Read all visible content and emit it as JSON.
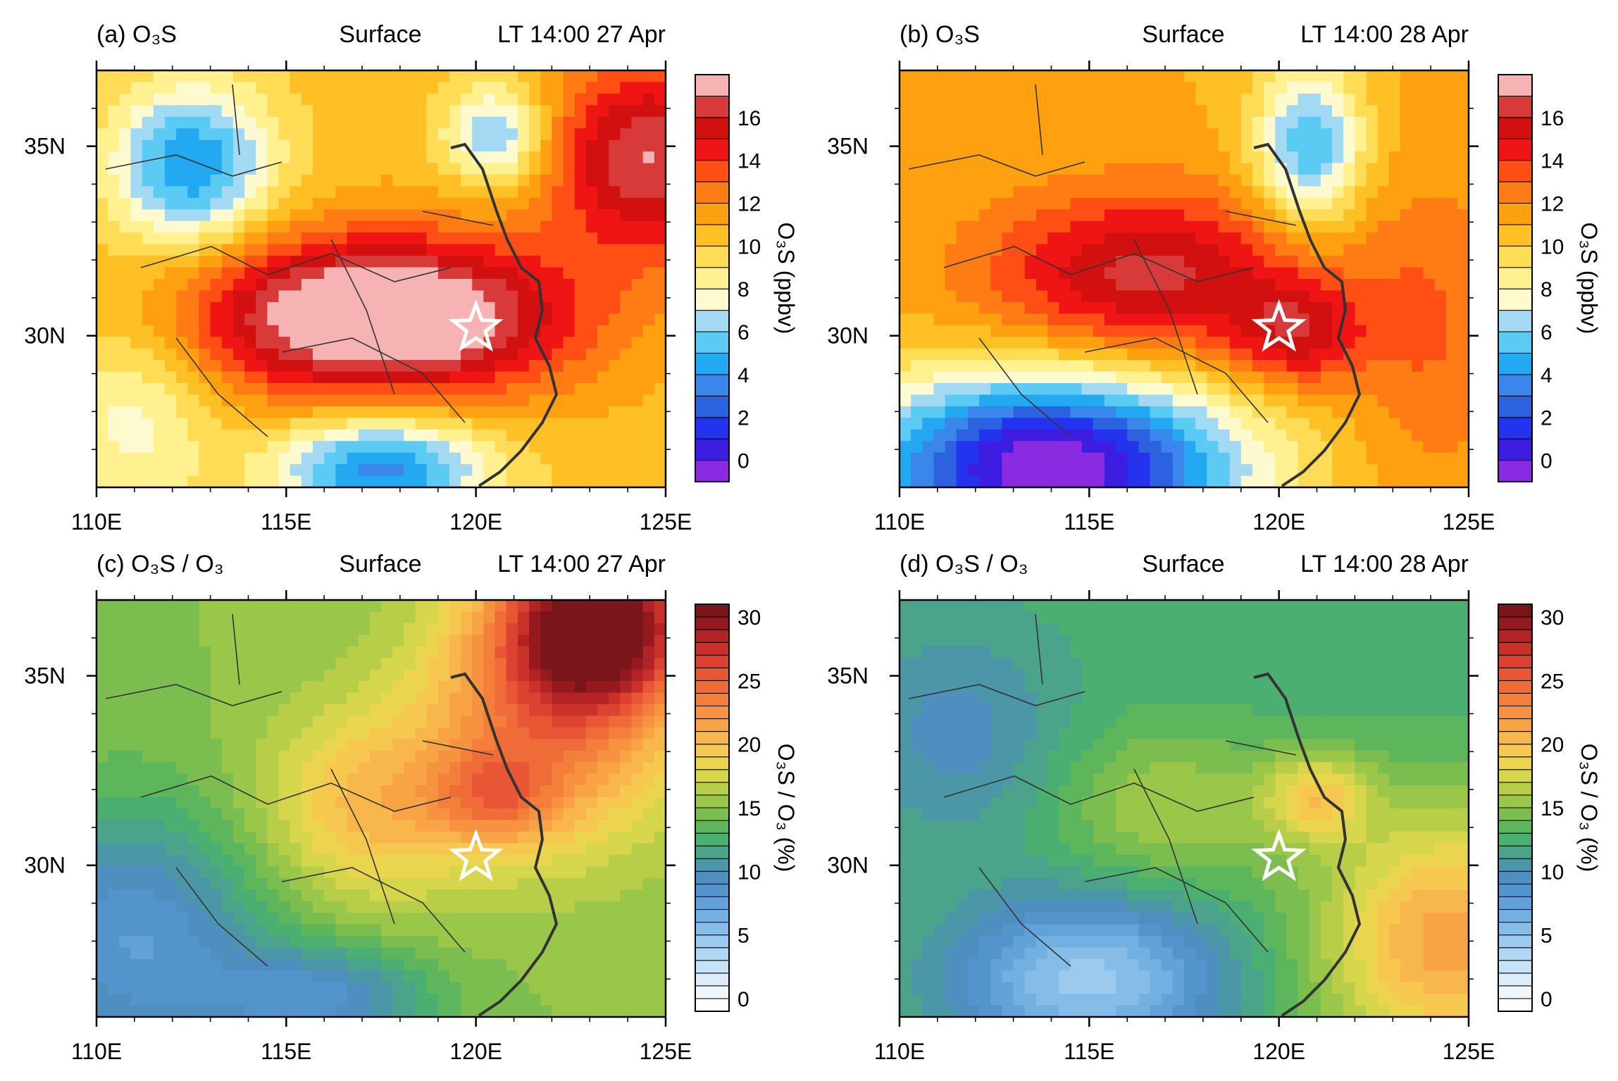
{
  "chart_data": [
    {
      "type": "heatmap",
      "panel": "a",
      "title_left": "(a) O₃S",
      "title_center": "Surface",
      "title_right": "LT 14:00 27 Apr",
      "colorbar_label": "O₃S (ppbv)",
      "colorbar_ticks": [
        "0",
        "2",
        "4",
        "6",
        "8",
        "10",
        "12",
        "14",
        "16"
      ],
      "colorbar_range": [
        -1,
        18
      ],
      "xlim": [
        110,
        125
      ],
      "ylim": [
        26,
        37
      ],
      "x_ticks": [
        "110E",
        "115E",
        "120E",
        "125E"
      ],
      "y_ticks": [
        "30N",
        "35N"
      ],
      "marker": {
        "lon": 120,
        "lat": 30.2,
        "symbol": "star"
      },
      "field_peaks": [
        {
          "lon": 117.5,
          "lat": 30.5,
          "amp": 9.5,
          "sx": 3.5,
          "sy": 1.5
        },
        {
          "lon": 124.5,
          "lat": 34.7,
          "amp": 6.5,
          "sx": 1.8,
          "sy": 1.8
        },
        {
          "lon": 112.5,
          "lat": 34.5,
          "amp": -6.5,
          "sx": 1.5,
          "sy": 1.5
        },
        {
          "lon": 117.5,
          "lat": 26.5,
          "amp": -7.0,
          "sx": 2.0,
          "sy": 1.0
        },
        {
          "lon": 120.5,
          "lat": 35.3,
          "amp": -5.0,
          "sx": 0.9,
          "sy": 0.9
        },
        {
          "lon": 111,
          "lat": 28,
          "amp": -3.0,
          "sx": 1.5,
          "sy": 2.0
        }
      ],
      "field_base": 10.5
    },
    {
      "type": "heatmap",
      "panel": "b",
      "title_left": "(b) O₃S",
      "title_center": "Surface",
      "title_right": "LT 14:00 28 Apr",
      "colorbar_label": "O₃S (ppbv)",
      "colorbar_ticks": [
        "0",
        "2",
        "4",
        "6",
        "8",
        "10",
        "12",
        "14",
        "16"
      ],
      "colorbar_range": [
        -1,
        18
      ],
      "xlim": [
        110,
        125
      ],
      "ylim": [
        26,
        37
      ],
      "x_ticks": [
        "110E",
        "115E",
        "120E",
        "125E"
      ],
      "y_ticks": [
        "30N",
        "35N"
      ],
      "marker": {
        "lon": 120,
        "lat": 30.2,
        "symbol": "star"
      },
      "field_peaks": [
        {
          "lon": 116.5,
          "lat": 31.5,
          "amp": 5.5,
          "sx": 3.0,
          "sy": 1.6
        },
        {
          "lon": 120.5,
          "lat": 30.0,
          "amp": 4.0,
          "sx": 1.2,
          "sy": 1.0
        },
        {
          "lon": 114,
          "lat": 26.5,
          "amp": -12.0,
          "sx": 3.5,
          "sy": 1.8
        },
        {
          "lon": 120.8,
          "lat": 35.0,
          "amp": -6.0,
          "sx": 1.0,
          "sy": 1.5
        },
        {
          "lon": 124,
          "lat": 30.0,
          "amp": 2.0,
          "sx": 1.5,
          "sy": 3.0
        }
      ],
      "field_base": 11.0
    },
    {
      "type": "heatmap",
      "panel": "c",
      "title_left": "(c) O₃S / O₃",
      "title_center": "Surface",
      "title_right": "LT 14:00 27 Apr",
      "colorbar_label": "O₃S / O₃ (%)",
      "colorbar_ticks": [
        "0",
        "5",
        "10",
        "15",
        "20",
        "25",
        "30"
      ],
      "colorbar_range": [
        -1,
        31
      ],
      "xlim": [
        110,
        125
      ],
      "ylim": [
        26,
        37
      ],
      "x_ticks": [
        "110E",
        "115E",
        "120E",
        "125E"
      ],
      "y_ticks": [
        "30N",
        "35N"
      ],
      "marker": {
        "lon": 120,
        "lat": 30.2,
        "symbol": "star"
      },
      "field_peaks": [
        {
          "lon": 123.3,
          "lat": 36.5,
          "amp": 15.0,
          "sx": 1.8,
          "sy": 1.6
        },
        {
          "lon": 122,
          "lat": 34.0,
          "amp": 8.0,
          "sx": 2.5,
          "sy": 2.5
        },
        {
          "lon": 117,
          "lat": 31.5,
          "amp": 5.0,
          "sx": 2.0,
          "sy": 1.8
        },
        {
          "lon": 120.5,
          "lat": 31.8,
          "amp": 5.0,
          "sx": 1.2,
          "sy": 0.9
        },
        {
          "lon": 111,
          "lat": 28.0,
          "amp": -7.0,
          "sx": 2.5,
          "sy": 2.5
        },
        {
          "lon": 116,
          "lat": 26.5,
          "amp": -6.0,
          "sx": 2.0,
          "sy": 1.0
        }
      ],
      "field_base": 15.0
    },
    {
      "type": "heatmap",
      "panel": "d",
      "title_left": "(d) O₃S / O₃",
      "title_center": "Surface",
      "title_right": "LT 14:00 28 Apr",
      "colorbar_label": "O₃S / O₃ (%)",
      "colorbar_ticks": [
        "0",
        "5",
        "10",
        "15",
        "20",
        "25",
        "30"
      ],
      "colorbar_range": [
        -1,
        31
      ],
      "xlim": [
        110,
        125
      ],
      "ylim": [
        26,
        37
      ],
      "x_ticks": [
        "110E",
        "115E",
        "120E",
        "125E"
      ],
      "y_ticks": [
        "30N",
        "35N"
      ],
      "marker": {
        "lon": 120,
        "lat": 30.2,
        "symbol": "star"
      },
      "field_peaks": [
        {
          "lon": 124.5,
          "lat": 28.0,
          "amp": 9.0,
          "sx": 2.5,
          "sy": 2.5
        },
        {
          "lon": 121,
          "lat": 31.8,
          "amp": 6.0,
          "sx": 1.0,
          "sy": 0.8
        },
        {
          "lon": 117,
          "lat": 31.5,
          "amp": 3.5,
          "sx": 2.0,
          "sy": 1.5
        },
        {
          "lon": 115,
          "lat": 27.0,
          "amp": -8.0,
          "sx": 2.5,
          "sy": 1.5
        },
        {
          "lon": 111.5,
          "lat": 33.5,
          "amp": -3.0,
          "sx": 2.0,
          "sy": 2.0
        }
      ],
      "field_base": 12.5
    }
  ],
  "colors": {
    "ppbv_scale": [
      "#8a2be2",
      "#3d1de0",
      "#2433ee",
      "#2c62e0",
      "#3a86ea",
      "#22a9f2",
      "#5ccbf4",
      "#a3d9f3",
      "#fdfad0",
      "#fff090",
      "#ffdc55",
      "#ffc025",
      "#ffa010",
      "#ff7b14",
      "#ff4f14",
      "#ef1515",
      "#d21010",
      "#d83a3a",
      "#f7b3b3"
    ],
    "percent_scale": [
      "#ffffff",
      "#eef6fc",
      "#dcedf9",
      "#c6e2f6",
      "#b0d6f2",
      "#9bcaee",
      "#86bde8",
      "#72b0e2",
      "#62a2d9",
      "#5494cd",
      "#4f8fbf",
      "#4b96a7",
      "#4ba38c",
      "#4caf72",
      "#5db55c",
      "#7bbd4f",
      "#9ac64a",
      "#b8ce49",
      "#d5d64b",
      "#ecd54e",
      "#f6c84f",
      "#f8b74c",
      "#f8a446",
      "#f69240",
      "#f37f3b",
      "#ef6b38",
      "#e85635",
      "#dc4231",
      "#cb312b",
      "#b22325",
      "#951a1f",
      "#7a1519"
    ],
    "star_fill": "#ffffff",
    "coast": "#333333"
  }
}
